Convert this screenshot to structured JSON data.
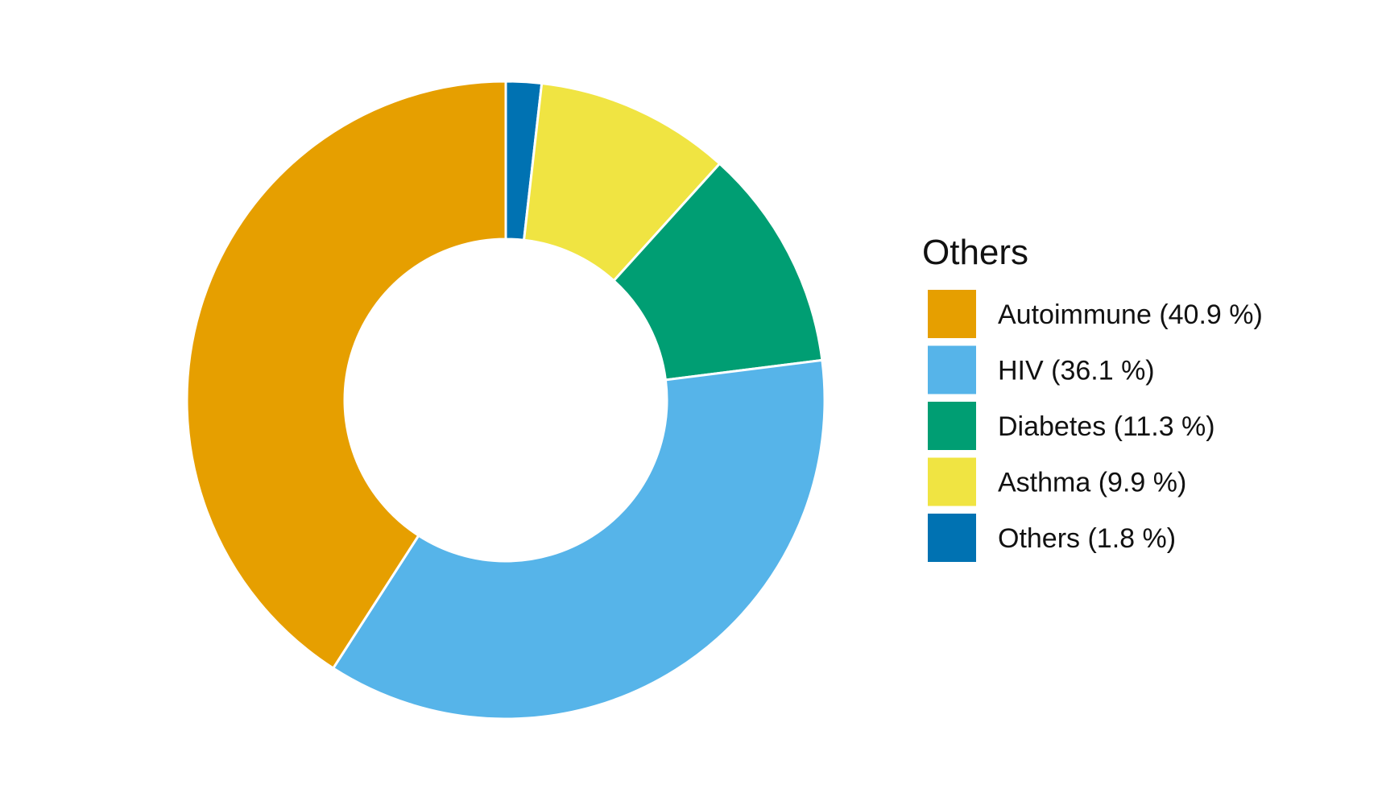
{
  "chart_data": {
    "type": "pie",
    "donut": true,
    "legend_title": "Others",
    "legend_position": "right",
    "slices": [
      {
        "label": "Autoimmune (40.9 %)",
        "value": 40.9,
        "color": "#E69F00"
      },
      {
        "label": "HIV (36.1 %)",
        "value": 36.1,
        "color": "#56B4E9"
      },
      {
        "label": "Diabetes (11.3 %)",
        "value": 11.3,
        "color": "#009E73"
      },
      {
        "label": "Asthma (9.9 %)",
        "value": 9.9,
        "color": "#F0E442"
      },
      {
        "label": "Others (1.8 %)",
        "value": 1.8,
        "color": "#0072B2"
      }
    ]
  }
}
